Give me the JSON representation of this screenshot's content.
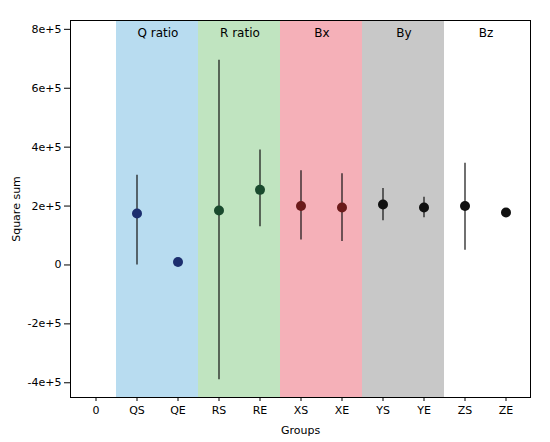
{
  "chart_data": {
    "type": "scatter",
    "xlabel": "Groups",
    "ylabel": "Square sum",
    "categories": [
      "0",
      "QS",
      "QE",
      "RS",
      "RE",
      "XS",
      "XE",
      "YS",
      "YE",
      "ZS",
      "ZE"
    ],
    "values": [
      null,
      175000,
      10000,
      185000,
      255000,
      200000,
      195000,
      205000,
      195000,
      200000,
      178000
    ],
    "colors": [
      null,
      "#1c2e6e",
      "#1c2e6e",
      "#1a4a2e",
      "#1a4a2e",
      "#6b1a1a",
      "#6b1a1a",
      "#111111",
      "#111111",
      "#111111",
      "#111111"
    ],
    "error_bars": {
      "low": [
        null,
        175000,
        12000,
        575000,
        125000,
        115000,
        115000,
        55000,
        35000,
        150000,
        12000
      ],
      "high": [
        null,
        130000,
        12000,
        510000,
        135000,
        120000,
        115000,
        55000,
        35000,
        145000,
        12000
      ],
      "color": "#111111"
    },
    "regions": [
      {
        "label": "Q ratio",
        "color": "#b8dcf0",
        "categories": [
          "QS",
          "QE"
        ]
      },
      {
        "label": "R ratio",
        "color": "#c0e4c0",
        "categories": [
          "RS",
          "RE"
        ]
      },
      {
        "label": "Bx",
        "color": "#f5b0b8",
        "categories": [
          "XS",
          "XE"
        ]
      },
      {
        "label": "By",
        "color": "#c8c8c8",
        "categories": [
          "YS",
          "YE"
        ]
      },
      {
        "label": "Bz",
        "color": "#ffffff",
        "categories": [
          "ZS",
          "ZE"
        ]
      }
    ],
    "ylim": [
      -450000,
      830000
    ],
    "yticks": [
      {
        "value": -400000,
        "label": "-4e+5"
      },
      {
        "value": -200000,
        "label": "-2e+5"
      },
      0,
      {
        "value": 200000,
        "label": "2e+5"
      },
      {
        "value": 400000,
        "label": "4e+5"
      },
      {
        "value": 600000,
        "label": "6e+5"
      },
      {
        "value": 800000,
        "label": "8e+5"
      }
    ],
    "grid": false
  }
}
